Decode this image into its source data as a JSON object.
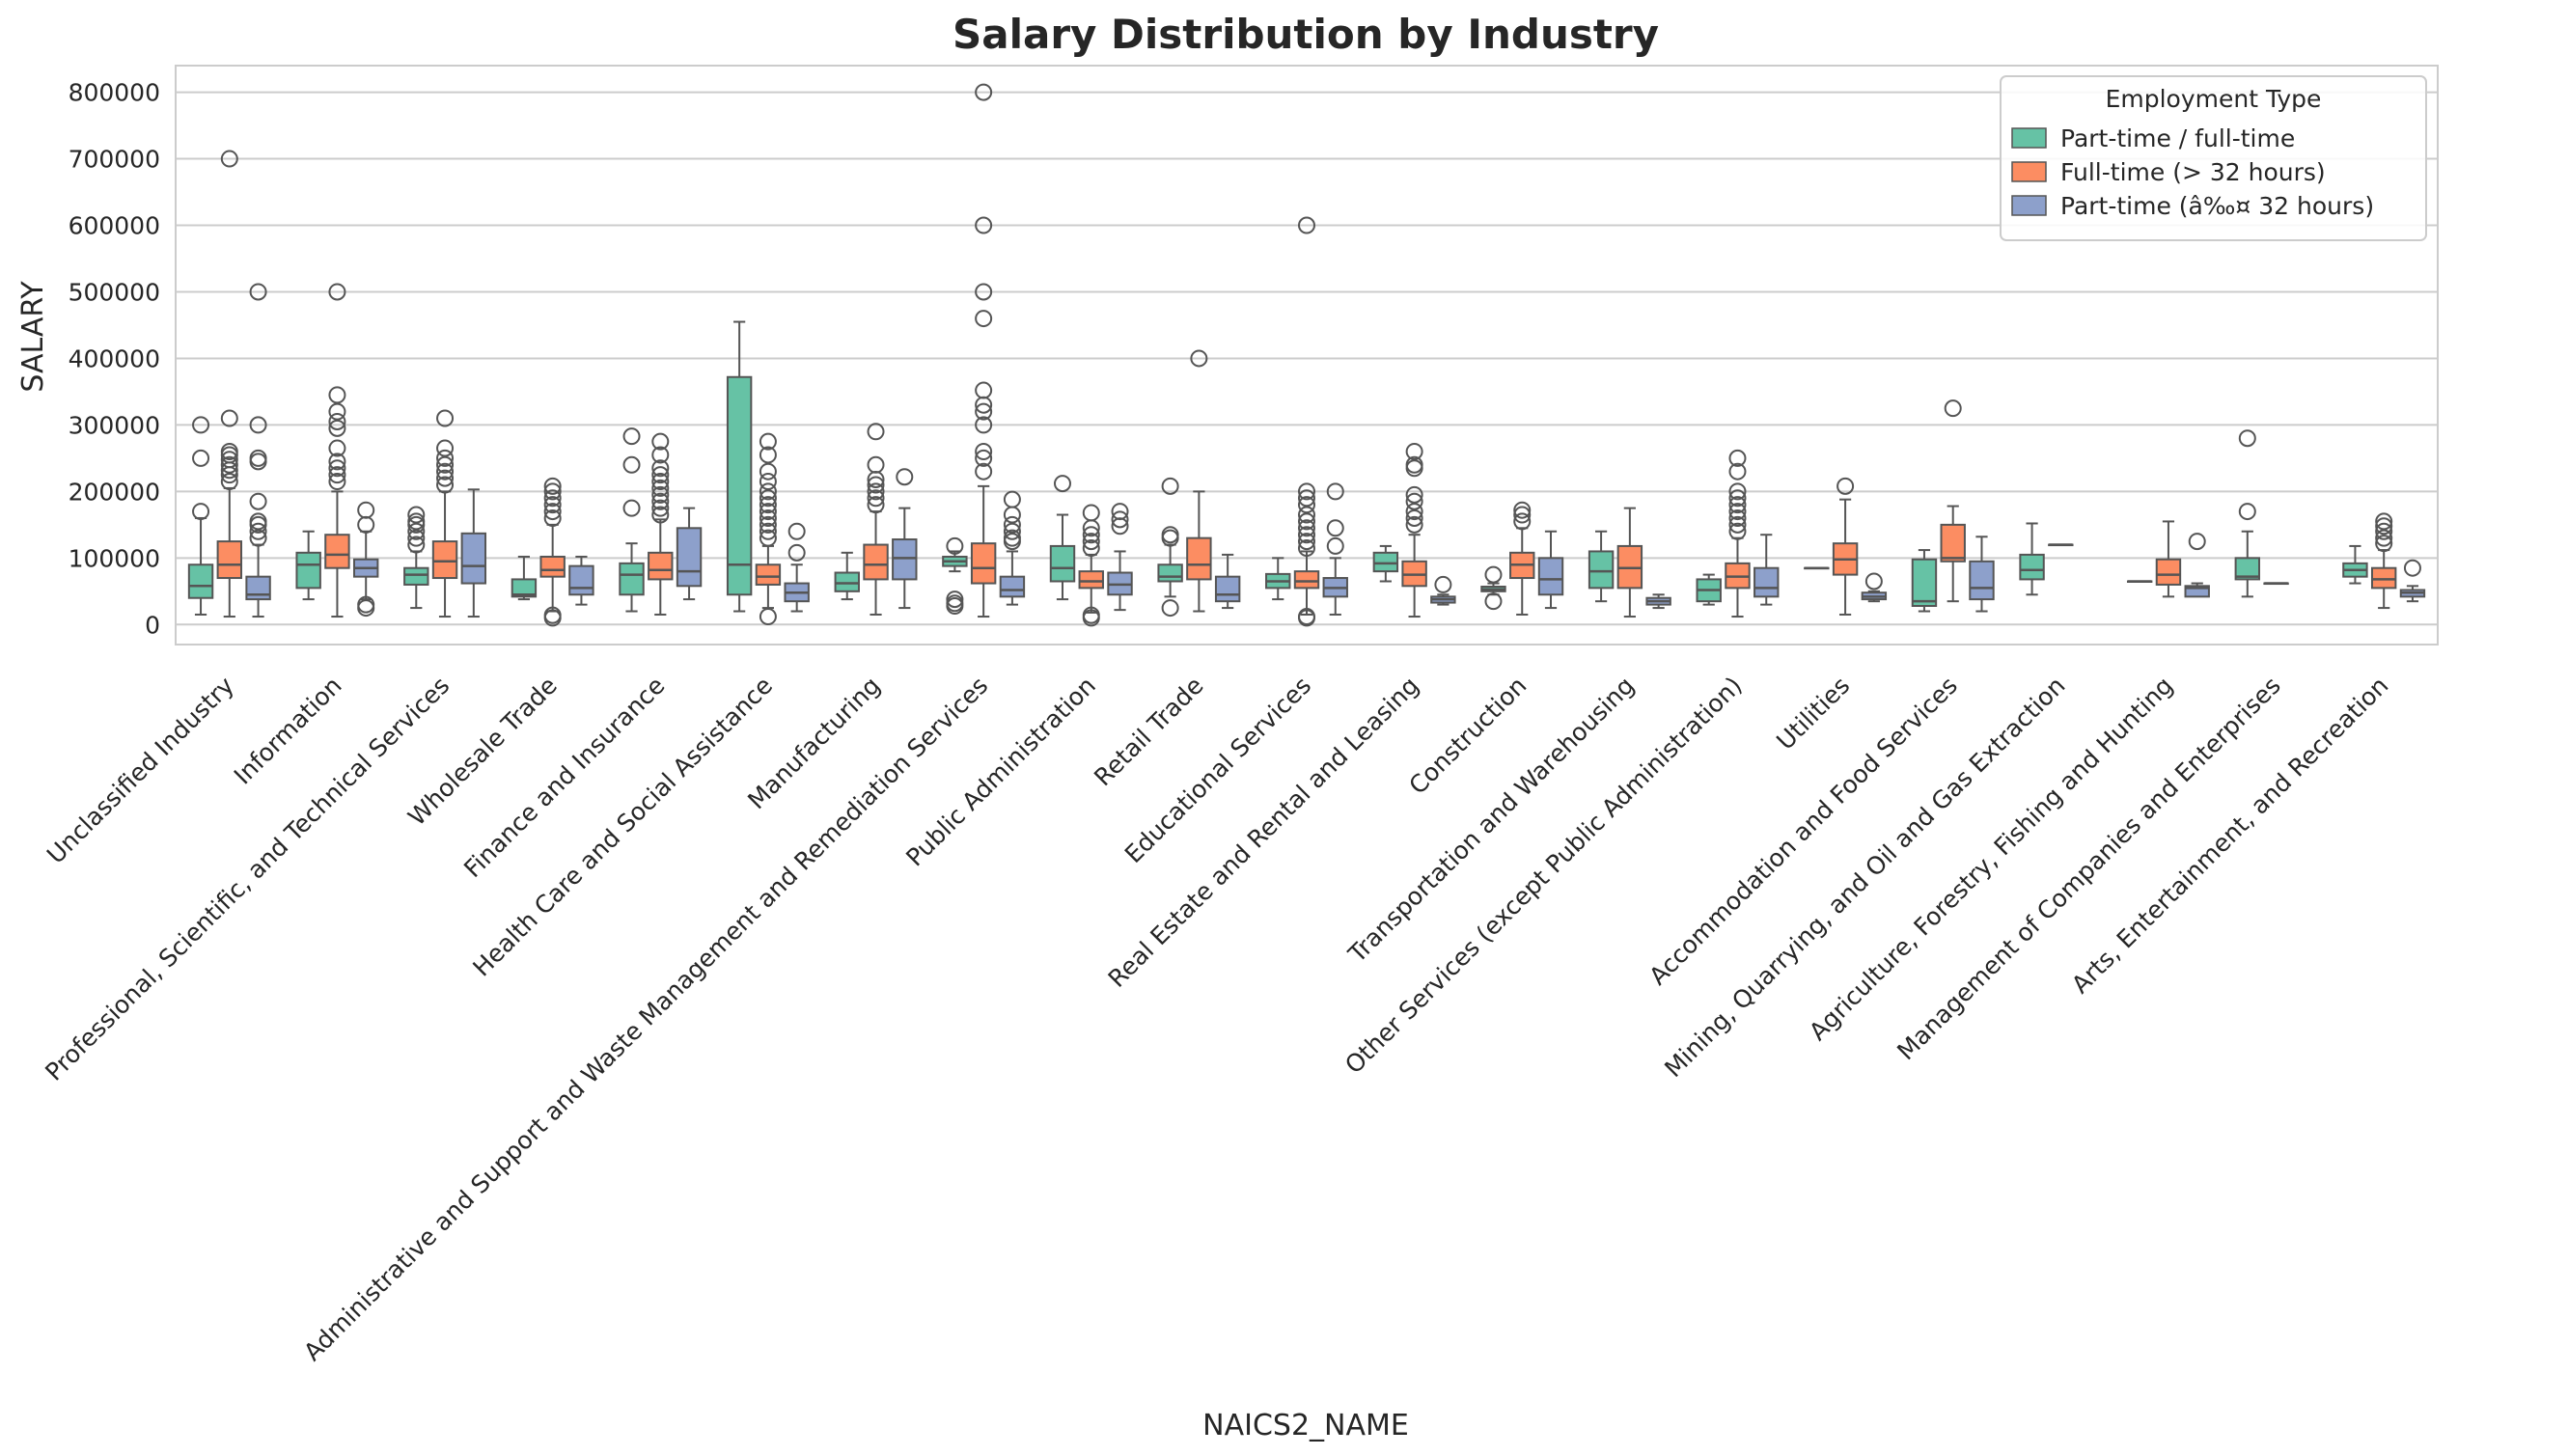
{
  "chart_data": {
    "type": "box",
    "title": "Salary Distribution by Industry",
    "xlabel": "NAICS2_NAME",
    "ylabel": "SALARY",
    "ylim": [
      -30000,
      840000
    ],
    "yticks": [
      0,
      100000,
      200000,
      300000,
      400000,
      500000,
      600000,
      700000,
      800000
    ],
    "ytick_labels": [
      "0",
      "100000",
      "200000",
      "300000",
      "400000",
      "500000",
      "600000",
      "700000",
      "800000"
    ],
    "grid": true,
    "legend": {
      "title": "Employment Type",
      "placement": "top-right"
    },
    "series": [
      {
        "name": "Part-time / full-time",
        "color": "#66c2a5"
      },
      {
        "name": "Full-time (> 32 hours)",
        "color": "#fc8d62"
      },
      {
        "name": "Part-time (â‰¤ 32 hours)",
        "color": "#8da0cb"
      }
    ],
    "categories": [
      "Unclassified Industry",
      "Information",
      "Professional, Scientific, and Technical Services",
      "Wholesale Trade",
      "Finance and Insurance",
      "Health Care and Social Assistance",
      "Manufacturing",
      "Administrative and Support and Waste Management and Remediation Services",
      "Public Administration",
      "Retail Trade",
      "Educational Services",
      "Real Estate and Rental and Leasing",
      "Construction",
      "Transportation and Warehousing",
      "Other Services (except Public Administration)",
      "Utilities",
      "Accommodation and Food Services",
      "Mining, Quarrying, and Oil and Gas Extraction",
      "Agriculture, Forestry, Fishing and Hunting",
      "Management of Companies and Enterprises",
      "Arts, Entertainment, and Recreation"
    ],
    "boxes": [
      [
        {
          "min": 15000,
          "q1": 40000,
          "med": 58000,
          "q3": 90000,
          "max": 160000,
          "outliers": [
            170000,
            250000,
            300000
          ]
        },
        {
          "min": 12000,
          "q1": 70000,
          "med": 90000,
          "q3": 125000,
          "max": 205000,
          "outliers": [
            215000,
            225000,
            232000,
            240000,
            248000,
            255000,
            260000,
            310000,
            700000
          ]
        },
        {
          "min": 12000,
          "q1": 38000,
          "med": 45000,
          "q3": 72000,
          "max": 120000,
          "outliers": [
            130000,
            140000,
            150000,
            155000,
            185000,
            245000,
            250000,
            300000,
            500000
          ]
        }
      ],
      [
        {
          "min": 38000,
          "q1": 55000,
          "med": 90000,
          "q3": 108000,
          "max": 140000,
          "outliers": []
        },
        {
          "min": 12000,
          "q1": 85000,
          "med": 105000,
          "q3": 135000,
          "max": 200000,
          "outliers": [
            215000,
            225000,
            235000,
            245000,
            265000,
            295000,
            305000,
            320000,
            345000,
            500000
          ]
        },
        {
          "min": 38000,
          "q1": 72000,
          "med": 85000,
          "q3": 98000,
          "max": 140000,
          "outliers": [
            25000,
            30000,
            150000,
            172000
          ]
        }
      ],
      [
        {
          "min": 25000,
          "q1": 60000,
          "med": 75000,
          "q3": 85000,
          "max": 110000,
          "outliers": [
            120000,
            130000,
            140000,
            150000,
            155000,
            165000
          ]
        },
        {
          "min": 12000,
          "q1": 70000,
          "med": 95000,
          "q3": 125000,
          "max": 200000,
          "outliers": [
            210000,
            220000,
            230000,
            240000,
            250000,
            265000,
            310000
          ]
        },
        {
          "min": 12000,
          "q1": 62000,
          "med": 88000,
          "q3": 137000,
          "max": 203000,
          "outliers": []
        }
      ],
      [
        {
          "min": 38000,
          "q1": 42000,
          "med": 45000,
          "q3": 68000,
          "max": 102000,
          "outliers": []
        },
        {
          "min": 20000,
          "q1": 72000,
          "med": 82000,
          "q3": 102000,
          "max": 150000,
          "outliers": [
            10000,
            14000,
            160000,
            170000,
            180000,
            190000,
            200000,
            208000
          ]
        },
        {
          "min": 30000,
          "q1": 45000,
          "med": 55000,
          "q3": 88000,
          "max": 102000,
          "outliers": []
        }
      ],
      [
        {
          "min": 20000,
          "q1": 45000,
          "med": 75000,
          "q3": 92000,
          "max": 122000,
          "outliers": [
            175000,
            240000,
            283000
          ]
        },
        {
          "min": 15000,
          "q1": 68000,
          "med": 82000,
          "q3": 108000,
          "max": 158000,
          "outliers": [
            165000,
            175000,
            185000,
            195000,
            205000,
            215000,
            225000,
            235000,
            255000,
            275000
          ]
        },
        {
          "min": 38000,
          "q1": 58000,
          "med": 80000,
          "q3": 145000,
          "max": 175000,
          "outliers": []
        }
      ],
      [
        {
          "min": 20000,
          "q1": 45000,
          "med": 90000,
          "q3": 372000,
          "max": 455000,
          "outliers": []
        },
        {
          "min": 25000,
          "q1": 60000,
          "med": 72000,
          "q3": 90000,
          "max": 118000,
          "outliers": [
            12000,
            130000,
            140000,
            150000,
            160000,
            170000,
            180000,
            190000,
            200000,
            215000,
            230000,
            255000,
            275000
          ]
        },
        {
          "min": 20000,
          "q1": 35000,
          "med": 48000,
          "q3": 62000,
          "max": 90000,
          "outliers": [
            108000,
            140000
          ]
        }
      ],
      [
        {
          "min": 38000,
          "q1": 50000,
          "med": 62000,
          "q3": 78000,
          "max": 108000,
          "outliers": []
        },
        {
          "min": 15000,
          "q1": 68000,
          "med": 90000,
          "q3": 120000,
          "max": 170000,
          "outliers": [
            180000,
            190000,
            200000,
            210000,
            218000,
            240000,
            290000
          ]
        },
        {
          "min": 25000,
          "q1": 68000,
          "med": 100000,
          "q3": 128000,
          "max": 175000,
          "outliers": [
            222000
          ]
        }
      ],
      [
        {
          "min": 80000,
          "q1": 88000,
          "med": 95000,
          "q3": 102000,
          "max": 110000,
          "outliers": [
            28000,
            32000,
            38000,
            118000
          ]
        },
        {
          "min": 12000,
          "q1": 62000,
          "med": 85000,
          "q3": 122000,
          "max": 208000,
          "outliers": [
            230000,
            250000,
            260000,
            300000,
            320000,
            330000,
            352000,
            460000,
            500000,
            600000,
            800000
          ]
        },
        {
          "min": 30000,
          "q1": 42000,
          "med": 52000,
          "q3": 72000,
          "max": 110000,
          "outliers": [
            125000,
            130000,
            140000,
            150000,
            165000,
            188000
          ]
        }
      ],
      [
        {
          "min": 38000,
          "q1": 65000,
          "med": 85000,
          "q3": 118000,
          "max": 165000,
          "outliers": [
            212000
          ]
        },
        {
          "min": 18000,
          "q1": 55000,
          "med": 65000,
          "q3": 80000,
          "max": 105000,
          "outliers": [
            10000,
            14000,
            115000,
            125000,
            135000,
            145000,
            168000
          ]
        },
        {
          "min": 22000,
          "q1": 45000,
          "med": 60000,
          "q3": 78000,
          "max": 110000,
          "outliers": [
            148000,
            158000,
            170000
          ]
        }
      ],
      [
        {
          "min": 42000,
          "q1": 65000,
          "med": 72000,
          "q3": 90000,
          "max": 120000,
          "outliers": [
            25000,
            130000,
            135000,
            208000
          ]
        },
        {
          "min": 20000,
          "q1": 68000,
          "med": 90000,
          "q3": 130000,
          "max": 200000,
          "outliers": [
            400000
          ]
        },
        {
          "min": 25000,
          "q1": 35000,
          "med": 45000,
          "q3": 72000,
          "max": 105000,
          "outliers": []
        }
      ],
      [
        {
          "min": 38000,
          "q1": 55000,
          "med": 65000,
          "q3": 76000,
          "max": 100000,
          "outliers": []
        },
        {
          "min": 15000,
          "q1": 55000,
          "med": 65000,
          "q3": 80000,
          "max": 110000,
          "outliers": [
            10000,
            12000,
            115000,
            125000,
            135000,
            145000,
            155000,
            165000,
            180000,
            190000,
            200000,
            600000
          ]
        },
        {
          "min": 15000,
          "q1": 42000,
          "med": 55000,
          "q3": 70000,
          "max": 100000,
          "outliers": [
            118000,
            145000,
            200000
          ]
        }
      ],
      [
        {
          "min": 65000,
          "q1": 80000,
          "med": 92000,
          "q3": 108000,
          "max": 118000,
          "outliers": []
        },
        {
          "min": 12000,
          "q1": 58000,
          "med": 75000,
          "q3": 95000,
          "max": 135000,
          "outliers": [
            150000,
            160000,
            170000,
            185000,
            195000,
            235000,
            240000,
            260000
          ]
        },
        {
          "min": 30000,
          "q1": 33000,
          "med": 38000,
          "q3": 42000,
          "max": 45000,
          "outliers": [
            60000
          ]
        }
      ],
      [
        {
          "min": 45000,
          "q1": 50000,
          "med": 53000,
          "q3": 57000,
          "max": 62000,
          "outliers": [
            35000,
            75000
          ]
        },
        {
          "min": 15000,
          "q1": 70000,
          "med": 90000,
          "q3": 108000,
          "max": 145000,
          "outliers": [
            155000,
            165000,
            172000
          ]
        },
        {
          "min": 25000,
          "q1": 45000,
          "med": 68000,
          "q3": 100000,
          "max": 140000,
          "outliers": []
        }
      ],
      [
        {
          "min": 35000,
          "q1": 55000,
          "med": 80000,
          "q3": 110000,
          "max": 140000,
          "outliers": []
        },
        {
          "min": 12000,
          "q1": 55000,
          "med": 85000,
          "q3": 118000,
          "max": 175000,
          "outliers": []
        },
        {
          "min": 25000,
          "q1": 30000,
          "med": 35000,
          "q3": 40000,
          "max": 45000,
          "outliers": []
        }
      ],
      [
        {
          "min": 30000,
          "q1": 35000,
          "med": 52000,
          "q3": 68000,
          "max": 75000,
          "outliers": []
        },
        {
          "min": 12000,
          "q1": 55000,
          "med": 72000,
          "q3": 92000,
          "max": 130000,
          "outliers": [
            140000,
            150000,
            160000,
            170000,
            180000,
            190000,
            200000,
            230000,
            250000
          ]
        },
        {
          "min": 30000,
          "q1": 42000,
          "med": 55000,
          "q3": 85000,
          "max": 135000,
          "outliers": []
        }
      ],
      [
        {
          "min": 85000,
          "q1": 85000,
          "med": 85000,
          "q3": 85000,
          "max": 85000,
          "outliers": []
        },
        {
          "min": 15000,
          "q1": 75000,
          "med": 98000,
          "q3": 122000,
          "max": 188000,
          "outliers": [
            208000
          ]
        },
        {
          "min": 35000,
          "q1": 38000,
          "med": 42000,
          "q3": 48000,
          "max": 50000,
          "outliers": [
            65000
          ]
        }
      ],
      [
        {
          "min": 20000,
          "q1": 28000,
          "med": 35000,
          "q3": 98000,
          "max": 112000,
          "outliers": []
        },
        {
          "min": 35000,
          "q1": 95000,
          "med": 100000,
          "q3": 150000,
          "max": 178000,
          "outliers": [
            325000
          ]
        },
        {
          "min": 20000,
          "q1": 38000,
          "med": 55000,
          "q3": 95000,
          "max": 132000,
          "outliers": []
        }
      ],
      [
        {
          "min": 45000,
          "q1": 68000,
          "med": 82000,
          "q3": 105000,
          "max": 152000,
          "outliers": []
        },
        {
          "min": 120000,
          "q1": 120000,
          "med": 120000,
          "q3": 120000,
          "max": 120000,
          "outliers": []
        },
        null
      ],
      [
        {
          "min": 65000,
          "q1": 65000,
          "med": 65000,
          "q3": 65000,
          "max": 65000,
          "outliers": []
        },
        {
          "min": 42000,
          "q1": 60000,
          "med": 75000,
          "q3": 98000,
          "max": 155000,
          "outliers": []
        },
        {
          "min": 42000,
          "q1": 42000,
          "med": 55000,
          "q3": 58000,
          "max": 62000,
          "outliers": [
            125000
          ]
        }
      ],
      [
        {
          "min": 42000,
          "q1": 68000,
          "med": 72000,
          "q3": 100000,
          "max": 140000,
          "outliers": [
            170000,
            280000
          ]
        },
        {
          "min": 62000,
          "q1": 62000,
          "med": 62000,
          "q3": 62000,
          "max": 62000,
          "outliers": []
        },
        null
      ],
      [
        {
          "min": 62000,
          "q1": 72000,
          "med": 82000,
          "q3": 92000,
          "max": 118000,
          "outliers": []
        },
        {
          "min": 25000,
          "q1": 55000,
          "med": 68000,
          "q3": 85000,
          "max": 112000,
          "outliers": [
            122000,
            130000,
            140000,
            148000,
            155000
          ]
        },
        {
          "min": 35000,
          "q1": 42000,
          "med": 48000,
          "q3": 52000,
          "max": 58000,
          "outliers": [
            85000
          ]
        }
      ]
    ]
  }
}
